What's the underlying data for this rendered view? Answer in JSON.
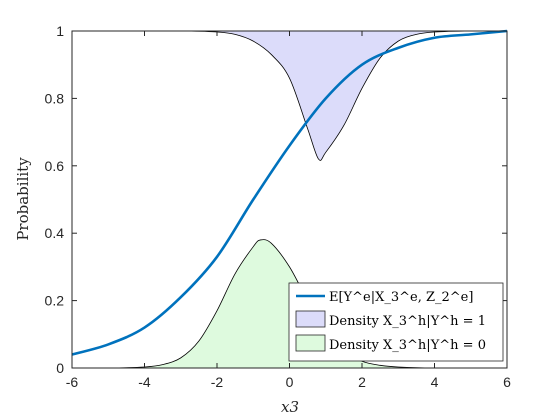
{
  "chart_data": {
    "type": "line",
    "xlabel": "x3",
    "ylabel": "Probability",
    "xlim": [
      -6,
      6
    ],
    "ylim": [
      0,
      1
    ],
    "x_ticks": [
      -6,
      -4,
      -2,
      0,
      2,
      4,
      6
    ],
    "y_ticks": [
      0,
      0.2,
      0.4,
      0.6,
      0.8,
      1
    ],
    "x_tick_labels": [
      "-6",
      "-4",
      "-2",
      "0",
      "2",
      "4",
      "6"
    ],
    "y_tick_labels": [
      "0",
      "0.2",
      "0.4",
      "0.6",
      "0.8",
      "1"
    ],
    "grid": false,
    "legend_position": "bottom-right",
    "series": [
      {
        "name": "E[Y^e|X_3^e, Z_2^e]",
        "kind": "line",
        "color": "#0072BD",
        "x": [
          -6,
          -5,
          -4,
          -3,
          -2,
          -1,
          0,
          1,
          2,
          3,
          4,
          5,
          6
        ],
        "y": [
          0.04,
          0.07,
          0.12,
          0.21,
          0.33,
          0.5,
          0.66,
          0.8,
          0.9,
          0.95,
          0.98,
          0.99,
          1.0
        ]
      },
      {
        "name": "Density X_3^h|Y^h = 1",
        "kind": "area-from-top",
        "fill": "#dcdcfa",
        "x": [
          -6,
          -3,
          -2,
          -1.5,
          -1,
          -0.5,
          0,
          0.5,
          0.8,
          1,
          1.5,
          2,
          2.5,
          3,
          3.5,
          4,
          5,
          6
        ],
        "y": [
          1.0,
          1.0,
          0.997,
          0.99,
          0.97,
          0.93,
          0.86,
          0.71,
          0.62,
          0.64,
          0.72,
          0.83,
          0.92,
          0.97,
          0.99,
          0.997,
          1.0,
          1.0
        ]
      },
      {
        "name": "Density X_3^h|Y^h = 0",
        "kind": "area",
        "fill": "#defade",
        "x": [
          -6,
          -5,
          -4,
          -3.5,
          -3,
          -2.5,
          -2,
          -1.5,
          -1,
          -0.8,
          -0.5,
          0,
          0.5,
          1,
          1.5,
          2,
          2.5,
          3,
          4,
          6
        ],
        "y": [
          0,
          0,
          0.003,
          0.01,
          0.03,
          0.08,
          0.17,
          0.28,
          0.36,
          0.38,
          0.37,
          0.3,
          0.2,
          0.11,
          0.05,
          0.02,
          0.008,
          0.003,
          0,
          0
        ]
      }
    ]
  }
}
